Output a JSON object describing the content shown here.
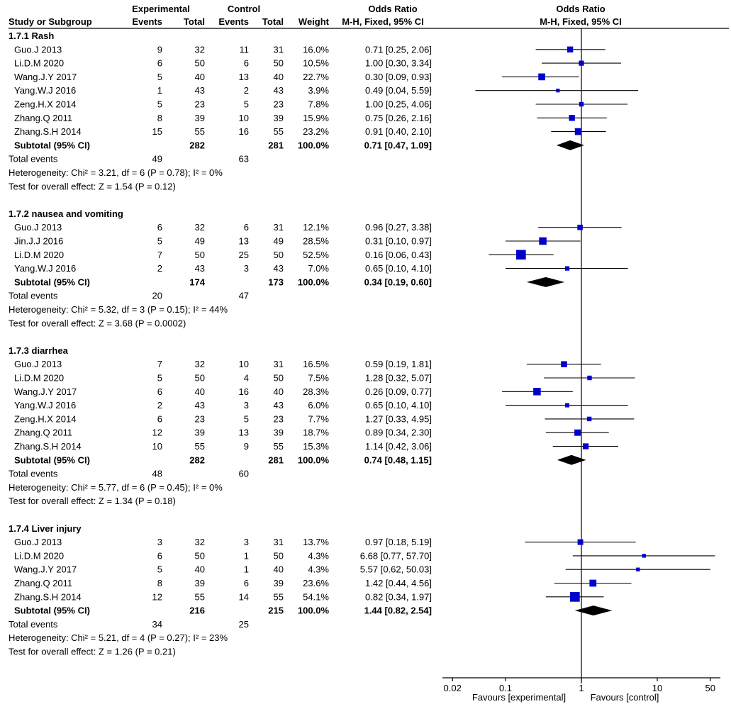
{
  "header": {
    "group_experimental": "Experimental",
    "group_control": "Control",
    "col_study": "Study or Subgroup",
    "col_events": "Events",
    "col_total": "Total",
    "col_events2": "Events",
    "col_total2": "Total",
    "col_weight": "Weight",
    "or_title": "Odds Ratio",
    "or_method": "M-H, Fixed, 95% CI",
    "plot_title": "Odds Ratio",
    "plot_method": "M-H, Fixed, 95% CI"
  },
  "labels": {
    "subtotal": "Subtotal (95% CI)",
    "total_events": "Total events"
  },
  "footer": {
    "favours_left": "Favours [experimental]",
    "favours_right": "Favours [control]"
  },
  "colors": {
    "marker": "#0000cc",
    "diamond": "#000000",
    "line": "#000000"
  },
  "chart_data": {
    "type": "forest",
    "scale": "log",
    "xlim": [
      0.02,
      50
    ],
    "ticks": [
      {
        "value": 0.02,
        "label": "0.02"
      },
      {
        "value": 0.1,
        "label": "0.1"
      },
      {
        "value": 1,
        "label": "1"
      },
      {
        "value": 10,
        "label": "10"
      },
      {
        "value": 50,
        "label": "50"
      }
    ],
    "subgroups": [
      {
        "title": "1.7.1 Rash",
        "studies": [
          {
            "name": "Guo.J 2013",
            "e_events": "9",
            "e_total": "32",
            "c_events": "11",
            "c_total": "31",
            "weight": "16.0%",
            "ci_text": "0.71 [0.25, 2.06]",
            "or": 0.71,
            "lo": 0.25,
            "hi": 2.06,
            "w": 16.0
          },
          {
            "name": "Li.D.M 2020",
            "e_events": "6",
            "e_total": "50",
            "c_events": "6",
            "c_total": "50",
            "weight": "10.5%",
            "ci_text": "1.00 [0.30, 3.34]",
            "or": 1.0,
            "lo": 0.3,
            "hi": 3.34,
            "w": 10.5
          },
          {
            "name": "Wang.J.Y 2017",
            "e_events": "5",
            "e_total": "40",
            "c_events": "13",
            "c_total": "40",
            "weight": "22.7%",
            "ci_text": "0.30 [0.09, 0.93]",
            "or": 0.3,
            "lo": 0.09,
            "hi": 0.93,
            "w": 22.7
          },
          {
            "name": "Yang.W.J 2016",
            "e_events": "1",
            "e_total": "43",
            "c_events": "2",
            "c_total": "43",
            "weight": "3.9%",
            "ci_text": "0.49 [0.04, 5.59]",
            "or": 0.49,
            "lo": 0.04,
            "hi": 5.59,
            "w": 3.9
          },
          {
            "name": "Zeng.H.X 2014",
            "e_events": "5",
            "e_total": "23",
            "c_events": "5",
            "c_total": "23",
            "weight": "7.8%",
            "ci_text": "1.00 [0.25, 4.06]",
            "or": 1.0,
            "lo": 0.25,
            "hi": 4.06,
            "w": 7.8
          },
          {
            "name": "Zhang.Q 2011",
            "e_events": "8",
            "e_total": "39",
            "c_events": "10",
            "c_total": "39",
            "weight": "15.9%",
            "ci_text": "0.75 [0.26, 2.16]",
            "or": 0.75,
            "lo": 0.26,
            "hi": 2.16,
            "w": 15.9
          },
          {
            "name": "Zhang.S.H 2014",
            "e_events": "15",
            "e_total": "55",
            "c_events": "16",
            "c_total": "55",
            "weight": "23.2%",
            "ci_text": "0.91 [0.40, 2.10]",
            "or": 0.91,
            "lo": 0.4,
            "hi": 2.1,
            "w": 23.2
          }
        ],
        "subtotal": {
          "e_total": "282",
          "c_total": "281",
          "weight": "100.0%",
          "ci_text": "0.71 [0.47, 1.09]",
          "or": 0.71,
          "lo": 0.47,
          "hi": 1.09
        },
        "total_events": {
          "e": "49",
          "c": "63"
        },
        "heterogeneity": "Heterogeneity: Chi² = 3.21, df = 6 (P = 0.78); I² = 0%",
        "overall": "Test for overall effect: Z = 1.54 (P = 0.12)"
      },
      {
        "title": "1.7.2 nausea and vomiting",
        "studies": [
          {
            "name": "Guo.J 2013",
            "e_events": "6",
            "e_total": "32",
            "c_events": "6",
            "c_total": "31",
            "weight": "12.1%",
            "ci_text": "0.96 [0.27, 3.38]",
            "or": 0.96,
            "lo": 0.27,
            "hi": 3.38,
            "w": 12.1
          },
          {
            "name": "Jin.J.J 2016",
            "e_events": "5",
            "e_total": "49",
            "c_events": "13",
            "c_total": "49",
            "weight": "28.5%",
            "ci_text": "0.31 [0.10, 0.97]",
            "or": 0.31,
            "lo": 0.1,
            "hi": 0.97,
            "w": 28.5
          },
          {
            "name": "Li.D.M 2020",
            "e_events": "7",
            "e_total": "50",
            "c_events": "25",
            "c_total": "50",
            "weight": "52.5%",
            "ci_text": "0.16 [0.06, 0.43]",
            "or": 0.16,
            "lo": 0.06,
            "hi": 0.43,
            "w": 52.5
          },
          {
            "name": "Yang.W.J 2016",
            "e_events": "2",
            "e_total": "43",
            "c_events": "3",
            "c_total": "43",
            "weight": "7.0%",
            "ci_text": "0.65 [0.10, 4.10]",
            "or": 0.65,
            "lo": 0.1,
            "hi": 4.1,
            "w": 7.0
          }
        ],
        "subtotal": {
          "e_total": "174",
          "c_total": "173",
          "weight": "100.0%",
          "ci_text": "0.34 [0.19, 0.60]",
          "or": 0.34,
          "lo": 0.19,
          "hi": 0.6
        },
        "total_events": {
          "e": "20",
          "c": "47"
        },
        "heterogeneity": "Heterogeneity: Chi² = 5.32, df = 3 (P = 0.15); I² = 44%",
        "overall": "Test for overall effect: Z = 3.68 (P = 0.0002)"
      },
      {
        "title": "1.7.3 diarrhea",
        "studies": [
          {
            "name": "Guo.J 2013",
            "e_events": "7",
            "e_total": "32",
            "c_events": "10",
            "c_total": "31",
            "weight": "16.5%",
            "ci_text": "0.59 [0.19, 1.81]",
            "or": 0.59,
            "lo": 0.19,
            "hi": 1.81,
            "w": 16.5
          },
          {
            "name": "Li.D.M 2020",
            "e_events": "5",
            "e_total": "50",
            "c_events": "4",
            "c_total": "50",
            "weight": "7.5%",
            "ci_text": "1.28 [0.32, 5.07]",
            "or": 1.28,
            "lo": 0.32,
            "hi": 5.07,
            "w": 7.5
          },
          {
            "name": "Wang.J.Y 2017",
            "e_events": "6",
            "e_total": "40",
            "c_events": "16",
            "c_total": "40",
            "weight": "28.3%",
            "ci_text": "0.26 [0.09, 0.77]",
            "or": 0.26,
            "lo": 0.09,
            "hi": 0.77,
            "w": 28.3
          },
          {
            "name": "Yang.W.J 2016",
            "e_events": "2",
            "e_total": "43",
            "c_events": "3",
            "c_total": "43",
            "weight": "6.0%",
            "ci_text": "0.65 [0.10, 4.10]",
            "or": 0.65,
            "lo": 0.1,
            "hi": 4.1,
            "w": 6.0
          },
          {
            "name": "Zeng.H.X 2014",
            "e_events": "6",
            "e_total": "23",
            "c_events": "5",
            "c_total": "23",
            "weight": "7.7%",
            "ci_text": "1.27 [0.33, 4.95]",
            "or": 1.27,
            "lo": 0.33,
            "hi": 4.95,
            "w": 7.7
          },
          {
            "name": "Zhang.Q 2011",
            "e_events": "12",
            "e_total": "39",
            "c_events": "13",
            "c_total": "39",
            "weight": "18.7%",
            "ci_text": "0.89 [0.34, 2.30]",
            "or": 0.89,
            "lo": 0.34,
            "hi": 2.3,
            "w": 18.7
          },
          {
            "name": "Zhang.S.H 2014",
            "e_events": "10",
            "e_total": "55",
            "c_events": "9",
            "c_total": "55",
            "weight": "15.3%",
            "ci_text": "1.14 [0.42, 3.06]",
            "or": 1.14,
            "lo": 0.42,
            "hi": 3.06,
            "w": 15.3
          }
        ],
        "subtotal": {
          "e_total": "282",
          "c_total": "281",
          "weight": "100.0%",
          "ci_text": "0.74 [0.48, 1.15]",
          "or": 0.74,
          "lo": 0.48,
          "hi": 1.15
        },
        "total_events": {
          "e": "48",
          "c": "60"
        },
        "heterogeneity": "Heterogeneity: Chi² = 5.77, df = 6 (P = 0.45); I² = 0%",
        "overall": "Test for overall effect: Z = 1.34 (P = 0.18)"
      },
      {
        "title": "1.7.4 Liver injury",
        "studies": [
          {
            "name": "Guo.J 2013",
            "e_events": "3",
            "e_total": "32",
            "c_events": "3",
            "c_total": "31",
            "weight": "13.7%",
            "ci_text": "0.97 [0.18, 5.19]",
            "or": 0.97,
            "lo": 0.18,
            "hi": 5.19,
            "w": 13.7
          },
          {
            "name": "Li.D.M 2020",
            "e_events": "6",
            "e_total": "50",
            "c_events": "1",
            "c_total": "50",
            "weight": "4.3%",
            "ci_text": "6.68 [0.77, 57.70]",
            "or": 6.68,
            "lo": 0.77,
            "hi": 57.7,
            "w": 4.3
          },
          {
            "name": "Wang.J.Y 2017",
            "e_events": "5",
            "e_total": "40",
            "c_events": "1",
            "c_total": "40",
            "weight": "4.3%",
            "ci_text": "5.57 [0.62, 50.03]",
            "or": 5.57,
            "lo": 0.62,
            "hi": 50.03,
            "w": 4.3
          },
          {
            "name": "Zhang.Q 2011",
            "e_events": "8",
            "e_total": "39",
            "c_events": "6",
            "c_total": "39",
            "weight": "23.6%",
            "ci_text": "1.42 [0.44, 4.56]",
            "or": 1.42,
            "lo": 0.44,
            "hi": 4.56,
            "w": 23.6
          },
          {
            "name": "Zhang.S.H 2014",
            "e_events": "12",
            "e_total": "55",
            "c_events": "14",
            "c_total": "55",
            "weight": "54.1%",
            "ci_text": "0.82 [0.34, 1.97]",
            "or": 0.82,
            "lo": 0.34,
            "hi": 1.97,
            "w": 54.1
          }
        ],
        "subtotal": {
          "e_total": "216",
          "c_total": "215",
          "weight": "100.0%",
          "ci_text": "1.44 [0.82, 2.54]",
          "or": 1.44,
          "lo": 0.82,
          "hi": 2.54
        },
        "total_events": {
          "e": "34",
          "c": "25"
        },
        "heterogeneity": "Heterogeneity: Chi² = 5.21, df = 4 (P = 0.27); I² = 23%",
        "overall": "Test for overall effect: Z = 1.26 (P = 0.21)"
      }
    ]
  }
}
